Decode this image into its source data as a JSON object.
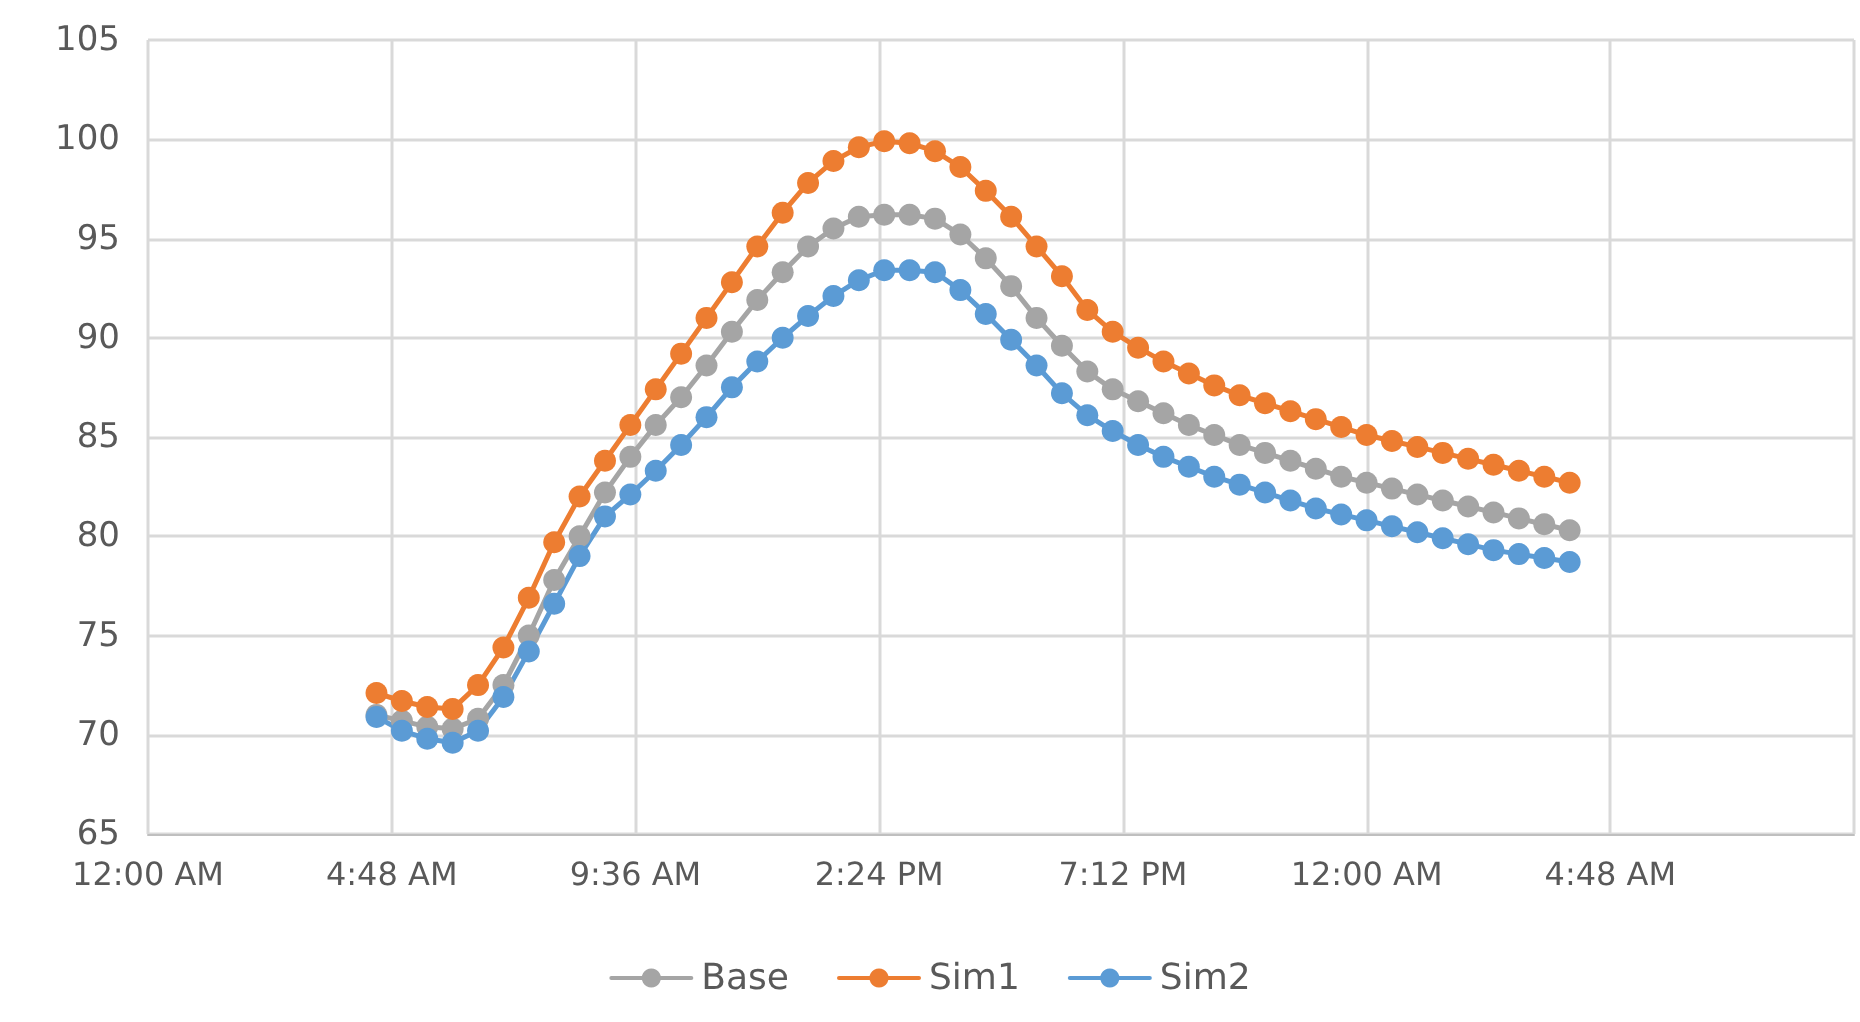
{
  "chart_data": {
    "type": "line",
    "x": [
      "2000-01-01T04:30",
      "2000-01-01T05:00",
      "2000-01-01T05:30",
      "2000-01-01T06:00",
      "2000-01-01T06:30",
      "2000-01-01T07:00",
      "2000-01-01T07:30",
      "2000-01-01T08:00",
      "2000-01-01T08:30",
      "2000-01-01T09:00",
      "2000-01-01T09:30",
      "2000-01-01T10:00",
      "2000-01-01T10:30",
      "2000-01-01T11:00",
      "2000-01-01T11:30",
      "2000-01-01T12:00",
      "2000-01-01T12:30",
      "2000-01-01T13:00",
      "2000-01-01T13:30",
      "2000-01-01T14:00",
      "2000-01-01T14:30",
      "2000-01-01T15:00",
      "2000-01-01T15:30",
      "2000-01-01T16:00",
      "2000-01-01T16:30",
      "2000-01-01T17:00",
      "2000-01-01T17:30",
      "2000-01-01T18:00",
      "2000-01-01T18:30",
      "2000-01-01T19:00",
      "2000-01-01T19:30",
      "2000-01-01T20:00",
      "2000-01-01T20:30",
      "2000-01-01T21:00",
      "2000-01-01T21:30",
      "2000-01-01T22:00",
      "2000-01-01T22:30",
      "2000-01-01T23:00",
      "2000-01-01T23:30",
      "2000-01-02T00:00",
      "2000-01-02T00:30",
      "2000-01-02T01:00",
      "2000-01-02T01:30",
      "2000-01-02T02:00",
      "2000-01-02T02:30",
      "2000-01-02T03:00",
      "2000-01-02T03:30",
      "2000-01-02T04:00"
    ],
    "series": [
      {
        "name": "Base",
        "color": "#a5a5a5",
        "values": [
          71.0,
          70.7,
          70.4,
          70.3,
          70.8,
          72.5,
          75.0,
          77.8,
          80.0,
          82.2,
          84.0,
          85.6,
          87.0,
          88.6,
          90.3,
          91.9,
          93.3,
          94.6,
          95.5,
          96.1,
          96.2,
          96.2,
          96.0,
          95.2,
          94.0,
          92.6,
          91.0,
          89.6,
          88.3,
          87.4,
          86.8,
          86.2,
          85.6,
          85.1,
          84.6,
          84.2,
          83.8,
          83.4,
          83.0,
          82.7,
          82.4,
          82.1,
          81.8,
          81.5,
          81.2,
          80.9,
          80.6,
          80.3
        ]
      },
      {
        "name": "Sim1",
        "color": "#ed7d31",
        "values": [
          72.1,
          71.7,
          71.4,
          71.3,
          72.5,
          74.4,
          76.9,
          79.7,
          82.0,
          83.8,
          85.6,
          87.4,
          89.2,
          91.0,
          92.8,
          94.6,
          96.3,
          97.8,
          98.9,
          99.6,
          99.9,
          99.8,
          99.4,
          98.6,
          97.4,
          96.1,
          94.6,
          93.1,
          91.4,
          90.3,
          89.5,
          88.8,
          88.2,
          87.6,
          87.1,
          86.7,
          86.3,
          85.9,
          85.5,
          85.1,
          84.8,
          84.5,
          84.2,
          83.9,
          83.6,
          83.3,
          83.0,
          82.7
        ]
      },
      {
        "name": "Sim2",
        "color": "#5b9bd5",
        "values": [
          70.9,
          70.2,
          69.8,
          69.6,
          70.2,
          71.9,
          74.2,
          76.6,
          79.0,
          81.0,
          82.1,
          83.3,
          84.6,
          86.0,
          87.5,
          88.8,
          90.0,
          91.1,
          92.1,
          92.9,
          93.4,
          93.4,
          93.3,
          92.4,
          91.2,
          89.9,
          88.6,
          87.2,
          86.1,
          85.3,
          84.6,
          84.0,
          83.5,
          83.0,
          82.6,
          82.2,
          81.8,
          81.4,
          81.1,
          80.8,
          80.5,
          80.2,
          79.9,
          79.6,
          79.3,
          79.1,
          78.9,
          78.7
        ]
      }
    ],
    "xlim": [
      "2000-01-01T00:00",
      "2000-01-02T09:36"
    ],
    "xticks": [
      {
        "value": "2000-01-01T00:00",
        "label": "12:00 AM"
      },
      {
        "value": "2000-01-01T04:48",
        "label": "4:48 AM"
      },
      {
        "value": "2000-01-01T09:36",
        "label": "9:36 AM"
      },
      {
        "value": "2000-01-01T14:24",
        "label": "2:24 PM"
      },
      {
        "value": "2000-01-01T19:12",
        "label": "7:12 PM"
      },
      {
        "value": "2000-01-02T00:00",
        "label": "12:00 AM"
      },
      {
        "value": "2000-01-02T04:48",
        "label": "4:48 AM"
      },
      {
        "value": "2000-01-02T09:36",
        "label": null
      }
    ],
    "ylim": [
      65,
      105
    ],
    "yticks": [
      65,
      70,
      75,
      80,
      85,
      90,
      95,
      100,
      105
    ],
    "grid": true,
    "legend": "bottom",
    "marker": "circle",
    "line_style": "solid"
  }
}
